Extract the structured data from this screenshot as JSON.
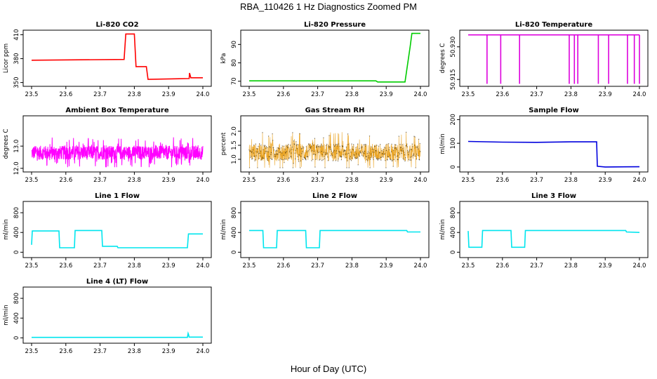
{
  "figure": {
    "title": "RBA_110426  1 Hz Diagnostics Zoomed PM",
    "xlabel": "Hour of Day (UTC)"
  },
  "chart_data": [
    {
      "type": "line",
      "title": "Li-820 CO2",
      "ylabel": "Licor ppm",
      "color": "#ff0000",
      "xlim": [
        23.5,
        24.0
      ],
      "ylim": [
        347,
        414
      ],
      "xticks": [
        "23.5",
        "23.6",
        "23.7",
        "23.8",
        "23.9",
        "24.0"
      ],
      "yticks": [
        350,
        380,
        410
      ],
      "x": [
        23.5,
        23.77,
        23.775,
        23.8,
        23.805,
        23.835,
        23.84,
        23.96,
        23.961,
        23.965,
        24.0
      ],
      "y": [
        378,
        379,
        411,
        411,
        370,
        370,
        354,
        355,
        362,
        356,
        356
      ]
    },
    {
      "type": "line",
      "title": "Li-820 Pressure",
      "ylabel": "kPa",
      "color": "#00cc00",
      "xlim": [
        23.5,
        24.0
      ],
      "ylim": [
        68,
        97
      ],
      "xticks": [
        "23.5",
        "23.6",
        "23.7",
        "23.8",
        "23.9",
        "24.0"
      ],
      "yticks": [
        70,
        80,
        90
      ],
      "x": [
        23.5,
        23.87,
        23.875,
        23.955,
        23.97,
        23.975,
        24.0
      ],
      "y": [
        70.2,
        70.2,
        69.6,
        69.6,
        89,
        96,
        96
      ]
    },
    {
      "type": "line",
      "title": "Li-820 Temperature",
      "ylabel": "degrees C",
      "color": "#dd00dd",
      "xlim": [
        23.5,
        24.0
      ],
      "ylim": [
        50.9125,
        50.937
      ],
      "xticks": [
        "23.5",
        "23.6",
        "23.7",
        "23.8",
        "23.9",
        "24.0"
      ],
      "yticks": [
        50.915,
        50.93
      ],
      "ytick_labels": [
        "50.915",
        "50.930"
      ],
      "x": [
        23.5,
        24.0
      ],
      "y": [
        50.9355,
        50.9355
      ],
      "dips_x": [
        23.555,
        23.595,
        23.65,
        23.795,
        23.81,
        23.82,
        23.88,
        23.91,
        23.965,
        23.985,
        24.0
      ],
      "dip_low": 50.913
    },
    {
      "type": "line",
      "title": "Ambient Box Temperature",
      "ylabel": "degrees C",
      "color": "#ff00ff",
      "xlim": [
        23.5,
        24.0
      ],
      "ylim": [
        11.9,
        14.3
      ],
      "xticks": [
        "23.5",
        "23.6",
        "23.7",
        "23.8",
        "23.9",
        "24.0"
      ],
      "yticks": [
        12.0,
        13.0
      ],
      "ytick_labels": [
        "12.0",
        "13.0"
      ],
      "noise": {
        "mean": 12.7,
        "spread": 0.45,
        "min": 12.05,
        "max": 14.2
      }
    },
    {
      "type": "scatter",
      "title": "Gas Stream RH",
      "ylabel": "percent",
      "color": "#e69500",
      "xlim": [
        23.5,
        24.0
      ],
      "ylim": [
        0.6,
        2.5
      ],
      "xticks": [
        "23.5",
        "23.6",
        "23.7",
        "23.8",
        "23.9",
        "24.0"
      ],
      "yticks": [
        1.0,
        1.5,
        2.0
      ],
      "ytick_labels": [
        "1.0",
        "1.5",
        "2.0"
      ],
      "noise": {
        "mean": 1.25,
        "spread": 0.45,
        "min": 0.7,
        "max": 2.45
      }
    },
    {
      "type": "line",
      "title": "Sample Flow",
      "ylabel": "ml/min",
      "color": "#0000dd",
      "xlim": [
        23.5,
        24.0
      ],
      "ylim": [
        -15,
        210
      ],
      "xticks": [
        "23.5",
        "23.6",
        "23.7",
        "23.8",
        "23.9",
        "24.0"
      ],
      "yticks": [
        0,
        100,
        200
      ],
      "x": [
        23.5,
        23.6,
        23.7,
        23.8,
        23.875,
        23.877,
        23.9,
        24.0
      ],
      "y": [
        108,
        105,
        104,
        106,
        106,
        3,
        0,
        1
      ]
    },
    {
      "type": "line",
      "title": "Line 1 Flow",
      "ylabel": "ml/min",
      "color": "#00e5ee",
      "xlim": [
        23.5,
        24.0
      ],
      "ylim": [
        -80,
        1000
      ],
      "xticks": [
        "23.5",
        "23.6",
        "23.7",
        "23.8",
        "23.9",
        "24.0"
      ],
      "yticks": [
        0,
        400,
        800
      ],
      "x": [
        23.5,
        23.502,
        23.58,
        23.582,
        23.625,
        23.627,
        23.705,
        23.707,
        23.75,
        23.752,
        23.955,
        23.958,
        24.0
      ],
      "y": [
        150,
        430,
        430,
        90,
        90,
        440,
        440,
        120,
        120,
        90,
        90,
        370,
        370
      ]
    },
    {
      "type": "line",
      "title": "Line 2 Flow",
      "ylabel": "ml/min",
      "color": "#00e5ee",
      "xlim": [
        23.5,
        24.0
      ],
      "ylim": [
        -80,
        1000
      ],
      "xticks": [
        "23.5",
        "23.6",
        "23.7",
        "23.8",
        "23.9",
        "24.0"
      ],
      "yticks": [
        0,
        400,
        800
      ],
      "x": [
        23.5,
        23.54,
        23.542,
        23.58,
        23.582,
        23.665,
        23.667,
        23.705,
        23.707,
        23.96,
        23.962,
        24.0
      ],
      "y": [
        440,
        440,
        90,
        90,
        440,
        440,
        90,
        90,
        440,
        440,
        410,
        410
      ]
    },
    {
      "type": "line",
      "title": "Line 3 Flow",
      "ylabel": "ml/min",
      "color": "#00e5ee",
      "xlim": [
        23.5,
        24.0
      ],
      "ylim": [
        -80,
        1000
      ],
      "xticks": [
        "23.5",
        "23.6",
        "23.7",
        "23.8",
        "23.9",
        "24.0"
      ],
      "yticks": [
        0,
        400,
        800
      ],
      "x": [
        23.5,
        23.502,
        23.54,
        23.542,
        23.625,
        23.627,
        23.665,
        23.667,
        23.96,
        23.962,
        24.0
      ],
      "y": [
        430,
        100,
        100,
        440,
        440,
        100,
        100,
        440,
        440,
        410,
        400
      ]
    },
    {
      "type": "line",
      "title": "Line 4 (LT) Flow",
      "ylabel": "ml/min",
      "color": "#00e5ee",
      "xlim": [
        23.5,
        24.0
      ],
      "ylim": [
        -80,
        1000
      ],
      "xticks": [
        "23.5",
        "23.6",
        "23.7",
        "23.8",
        "23.9",
        "24.0"
      ],
      "yticks": [
        0,
        400,
        800
      ],
      "x": [
        23.5,
        23.955,
        23.957,
        23.958,
        23.96,
        24.0
      ],
      "y": [
        10,
        10,
        90,
        70,
        15,
        15
      ]
    }
  ]
}
